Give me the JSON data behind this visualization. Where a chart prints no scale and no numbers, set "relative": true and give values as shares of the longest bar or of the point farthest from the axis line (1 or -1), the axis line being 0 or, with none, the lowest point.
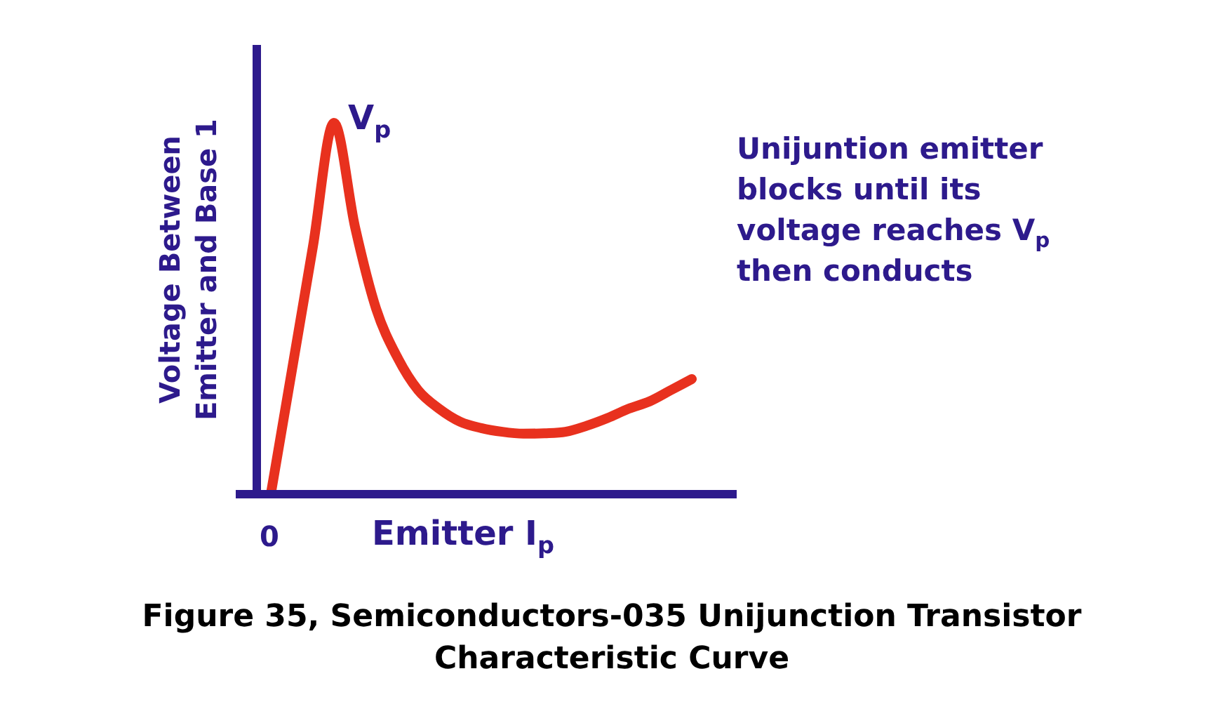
{
  "chart_data": {
    "type": "line",
    "relative": true,
    "title": "Figure 35, Semiconductors-035 Unijunction Transistor Characteristic Curve",
    "xlabel": "Emitter I$_{p}$",
    "ylabel": "Voltage Between Emitter and Base 1",
    "categories": [
      null,
      null,
      null,
      null,
      null,
      null,
      null,
      null,
      null,
      null,
      null,
      null,
      null,
      null,
      null,
      null,
      null,
      null,
      null,
      null,
      null
    ],
    "series": [
      {
        "color": "#e8311e",
        "values": [
          0,
          0.333,
          0.667,
          1,
          0.72,
          0.5,
          0.37,
          0.28,
          0.23,
          0.195,
          0.178,
          0.168,
          0.163,
          0.164,
          0.168,
          0.184,
          0.205,
          0.23,
          0.25,
          0.28,
          0.31
        ]
      }
    ],
    "annotations": [
      "V$_{p}$",
      "0",
      "Unijuntion emitter blocks until its voltage reaches V$_{p}$ then conducts"
    ],
    "marker": "none",
    "line_style": "solid",
    "legend": false
  }
}
